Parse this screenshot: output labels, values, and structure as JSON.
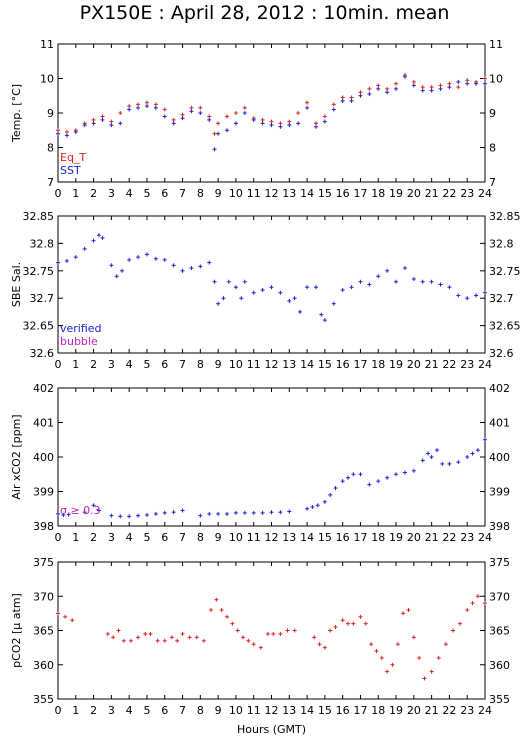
{
  "title": "PX150E : April 28, 2012 : 10min. mean",
  "xlabel": "Hours (GMT)",
  "chart_data": [
    {
      "type": "scatter",
      "name": "temperature",
      "ylabel": "Temp. [°C]",
      "xlim": [
        0,
        24
      ],
      "ylim": [
        7,
        11
      ],
      "xticks": [
        0,
        1,
        2,
        3,
        4,
        5,
        6,
        7,
        8,
        9,
        10,
        11,
        12,
        13,
        14,
        15,
        16,
        17,
        18,
        19,
        20,
        21,
        22,
        23,
        24
      ],
      "yticks": [
        7,
        8,
        9,
        10,
        11
      ],
      "legend_position": "bottom-left",
      "series": [
        {
          "name": "Eq_T",
          "color": "#e02020",
          "x": [
            0,
            0.5,
            1,
            1.5,
            2,
            2.5,
            3,
            3.5,
            4,
            4.5,
            5,
            5.5,
            6,
            6.5,
            7,
            7.5,
            8,
            8.5,
            8.8,
            9,
            9.5,
            10,
            10.5,
            11,
            11.5,
            12,
            12.5,
            13,
            13.5,
            14,
            14.5,
            15,
            15.5,
            16,
            16.5,
            17,
            17.5,
            18,
            18.5,
            19,
            19.5,
            20,
            20.5,
            21,
            21.5,
            22,
            22.5,
            23,
            23.5,
            24
          ],
          "y": [
            8.5,
            8.45,
            8.5,
            8.7,
            8.8,
            8.9,
            8.75,
            9.0,
            9.2,
            9.25,
            9.3,
            9.25,
            9.1,
            8.8,
            8.95,
            9.15,
            9.15,
            8.9,
            8.4,
            8.7,
            8.9,
            9.0,
            9.15,
            8.85,
            8.8,
            8.75,
            8.7,
            8.75,
            9.0,
            9.3,
            8.7,
            8.9,
            9.25,
            9.45,
            9.45,
            9.6,
            9.7,
            9.8,
            9.7,
            9.85,
            10.1,
            9.9,
            9.75,
            9.75,
            9.8,
            9.85,
            9.75,
            9.95,
            9.9,
            10.0
          ]
        },
        {
          "name": "SST",
          "color": "#2020d0",
          "x": [
            0,
            0.5,
            1,
            1.5,
            2,
            2.5,
            3,
            3.5,
            4,
            4.5,
            5,
            5.5,
            6,
            6.5,
            7,
            7.5,
            8,
            8.5,
            8.8,
            9,
            9.5,
            10,
            10.5,
            11,
            11.5,
            12,
            12.5,
            13,
            13.5,
            14,
            14.5,
            15,
            15.5,
            16,
            16.5,
            17,
            17.5,
            18,
            18.5,
            19,
            19.5,
            20,
            20.5,
            21,
            21.5,
            22,
            22.5,
            23,
            23.5,
            24
          ],
          "y": [
            8.4,
            8.35,
            8.45,
            8.65,
            8.7,
            8.8,
            8.65,
            8.7,
            9.1,
            9.15,
            9.2,
            9.15,
            8.9,
            8.7,
            8.85,
            9.05,
            9.0,
            8.8,
            7.95,
            8.4,
            8.5,
            8.7,
            9.0,
            8.8,
            8.7,
            8.65,
            8.6,
            8.65,
            8.7,
            9.15,
            8.6,
            8.75,
            9.1,
            9.35,
            9.35,
            9.5,
            9.55,
            9.7,
            9.6,
            9.7,
            10.05,
            9.8,
            9.65,
            9.65,
            9.7,
            9.75,
            9.9,
            9.85,
            9.85,
            9.85
          ]
        }
      ]
    },
    {
      "type": "scatter",
      "name": "salinity",
      "ylabel": "SBE Sal.",
      "xlim": [
        0,
        24
      ],
      "ylim": [
        32.6,
        32.85
      ],
      "xticks": [
        0,
        1,
        2,
        3,
        4,
        5,
        6,
        7,
        8,
        9,
        10,
        11,
        12,
        13,
        14,
        15,
        16,
        17,
        18,
        19,
        20,
        21,
        22,
        23,
        24
      ],
      "yticks": [
        32.6,
        32.65,
        32.7,
        32.75,
        32.8,
        32.85
      ],
      "legend_position": "bottom-left",
      "series": [
        {
          "name": "verified",
          "color": "#2020d0",
          "x": [
            0,
            0.5,
            1,
            1.5,
            2,
            2.3,
            2.5,
            3,
            3.3,
            3.6,
            4,
            4.5,
            5,
            5.5,
            6,
            6.5,
            7,
            7.5,
            8,
            8.5,
            8.8,
            9,
            9.3,
            9.6,
            10,
            10.3,
            10.5,
            11,
            11.5,
            12,
            12.5,
            13,
            13.3,
            13.6,
            14,
            14.5,
            14.8,
            15,
            15.5,
            16,
            16.5,
            17,
            17.5,
            18,
            18.5,
            19,
            19.5,
            20,
            20.5,
            21,
            21.5,
            22,
            22.5,
            23,
            23.5,
            24
          ],
          "y": [
            32.765,
            32.768,
            32.775,
            32.79,
            32.805,
            32.815,
            32.81,
            32.76,
            32.74,
            32.75,
            32.77,
            32.775,
            32.78,
            32.772,
            32.77,
            32.76,
            32.75,
            32.755,
            32.758,
            32.765,
            32.73,
            32.69,
            32.7,
            32.73,
            32.72,
            32.7,
            32.73,
            32.71,
            32.715,
            32.72,
            32.71,
            32.695,
            32.7,
            32.675,
            32.72,
            32.72,
            32.67,
            32.66,
            32.69,
            32.715,
            32.72,
            32.73,
            32.725,
            32.74,
            32.75,
            32.73,
            32.755,
            32.735,
            32.73,
            32.73,
            32.725,
            32.72,
            32.705,
            32.7,
            32.705,
            32.71
          ]
        },
        {
          "name": "bubble",
          "color": "#c020c0",
          "x": [],
          "y": []
        }
      ]
    },
    {
      "type": "scatter",
      "name": "air-xco2",
      "ylabel": "Air xCO2 [ppm]",
      "xlim": [
        0,
        24
      ],
      "ylim": [
        398,
        402
      ],
      "xticks": [
        0,
        1,
        2,
        3,
        4,
        5,
        6,
        7,
        8,
        9,
        10,
        11,
        12,
        13,
        14,
        15,
        16,
        17,
        18,
        19,
        20,
        21,
        22,
        23,
        24
      ],
      "yticks": [
        398,
        399,
        400,
        401,
        402
      ],
      "annotation": "σ ≥ 0.3",
      "series": [
        {
          "name": "xCO2",
          "color": "#2020d0",
          "x": [
            0,
            0.3,
            0.6,
            1.5,
            2.0,
            2.3,
            3,
            3.5,
            4,
            4.5,
            5,
            5.5,
            6,
            6.5,
            7,
            8,
            8.5,
            9,
            9.5,
            10,
            10.5,
            11,
            11.5,
            12,
            12.5,
            13,
            14,
            14.3,
            14.6,
            15,
            15.3,
            15.6,
            16,
            16.3,
            16.6,
            17,
            17.5,
            18,
            18.5,
            19,
            19.5,
            20,
            20.5,
            20.8,
            21,
            21.3,
            21.6,
            22,
            22.5,
            23,
            23.3,
            23.6,
            24
          ],
          "y": [
            398.35,
            398.32,
            398.33,
            398.4,
            398.6,
            398.45,
            398.3,
            398.28,
            398.28,
            398.3,
            398.32,
            398.35,
            398.38,
            398.4,
            398.45,
            398.3,
            398.35,
            398.35,
            398.35,
            398.38,
            398.38,
            398.38,
            398.38,
            398.4,
            398.4,
            398.42,
            398.5,
            398.55,
            398.6,
            398.7,
            398.9,
            399.1,
            399.3,
            399.4,
            399.5,
            399.5,
            399.2,
            399.3,
            399.4,
            399.5,
            399.55,
            399.6,
            399.9,
            400.1,
            400.0,
            400.2,
            399.8,
            399.8,
            399.85,
            400.0,
            400.1,
            400.2,
            400.5
          ]
        }
      ]
    },
    {
      "type": "scatter",
      "name": "pco2",
      "ylabel": "pCO2 [μ atm]",
      "xlim": [
        0,
        24
      ],
      "ylim": [
        355,
        375
      ],
      "xticks": [
        0,
        1,
        2,
        3,
        4,
        5,
        6,
        7,
        8,
        9,
        10,
        11,
        12,
        13,
        14,
        15,
        16,
        17,
        18,
        19,
        20,
        21,
        22,
        23,
        24
      ],
      "yticks": [
        355,
        360,
        365,
        370,
        375
      ],
      "series": [
        {
          "name": "pCO2",
          "color": "#e02020",
          "x": [
            0,
            0.4,
            0.8,
            2.8,
            3.1,
            3.4,
            3.7,
            4.1,
            4.5,
            4.9,
            5.2,
            5.6,
            6,
            6.4,
            6.7,
            7.0,
            7.4,
            7.8,
            8.2,
            8.6,
            8.9,
            9.2,
            9.5,
            9.8,
            10.1,
            10.4,
            10.7,
            11.0,
            11.4,
            11.8,
            12.1,
            12.5,
            12.9,
            13.3,
            14.4,
            14.7,
            15.0,
            15.3,
            15.6,
            16.0,
            16.3,
            16.6,
            17.0,
            17.3,
            17.6,
            17.9,
            18.2,
            18.5,
            18.8,
            19.1,
            19.4,
            19.7,
            20.0,
            20.3,
            20.6,
            21.0,
            21.4,
            21.8,
            22.2,
            22.6,
            23.0,
            23.3,
            23.6,
            24
          ],
          "y": [
            367.5,
            367,
            366.5,
            364.5,
            364,
            365,
            363.5,
            363.5,
            364,
            364.5,
            364.5,
            363.5,
            363.5,
            364,
            363.5,
            364.5,
            364,
            364,
            363.5,
            368,
            369.5,
            368,
            367,
            366,
            365,
            364,
            363.5,
            363,
            362.5,
            364.5,
            364.5,
            364.5,
            365,
            365,
            364,
            363,
            362.5,
            365,
            365.5,
            366.5,
            366,
            366,
            367,
            366,
            363,
            362,
            361,
            359,
            360,
            363,
            367.5,
            368,
            364,
            361,
            358,
            359,
            361,
            363,
            365,
            366,
            368,
            369,
            370,
            369
          ]
        }
      ]
    }
  ]
}
